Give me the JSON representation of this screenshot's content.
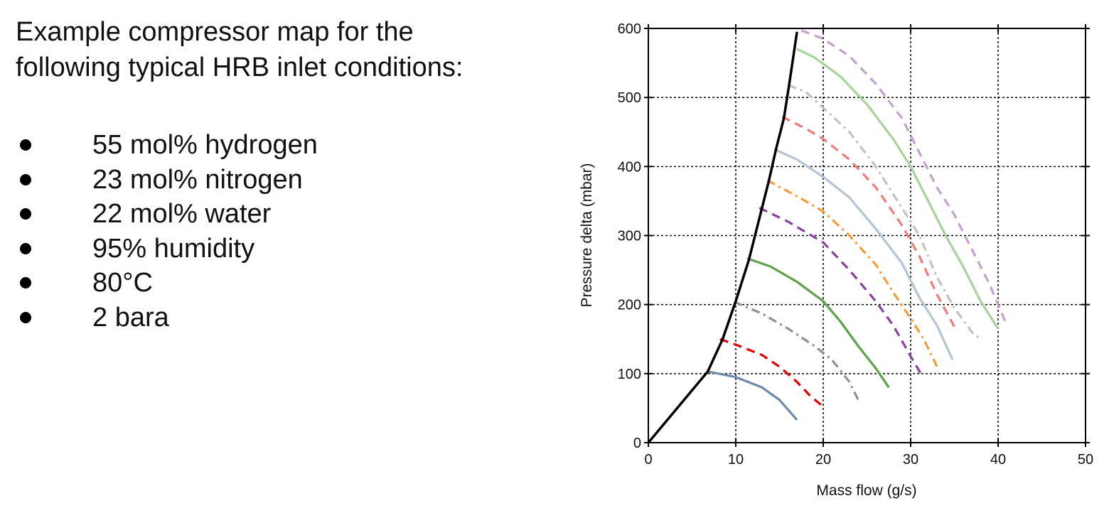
{
  "slide": {
    "title_lines": [
      "Example compressor map for the",
      "following typical HRB inlet conditions:"
    ],
    "bullets": [
      "55 mol% hydrogen",
      "23 mol% nitrogen",
      "22 mol% water",
      "95% humidity",
      "80°C",
      "2 bara"
    ]
  },
  "chart_data": {
    "type": "line",
    "title": "",
    "xlabel": "Mass flow (g/s)",
    "ylabel": "Pressure delta (mbar)",
    "xlim": [
      0,
      50
    ],
    "ylim": [
      0,
      600
    ],
    "xticks": [
      0,
      10,
      20,
      30,
      40,
      50
    ],
    "yticks": [
      0,
      100,
      200,
      300,
      400,
      500,
      600
    ],
    "grid": true,
    "surge_line": {
      "color": "#000000",
      "style": "solid",
      "points": [
        [
          0,
          0
        ],
        [
          6.8,
          103
        ],
        [
          8.5,
          150
        ],
        [
          10,
          205
        ],
        [
          11.5,
          265
        ],
        [
          13,
          340
        ],
        [
          13.8,
          380
        ],
        [
          14.6,
          425
        ],
        [
          15.5,
          470
        ],
        [
          16.1,
          518
        ],
        [
          17,
          595
        ]
      ]
    },
    "series": [
      {
        "color": "#6f8aa8",
        "style": "solid",
        "points": [
          [
            6.8,
            103
          ],
          [
            10,
            95
          ],
          [
            13,
            80
          ],
          [
            15,
            62
          ],
          [
            17,
            33
          ]
        ]
      },
      {
        "color": "#e00000",
        "style": "dashed",
        "points": [
          [
            8.2,
            150
          ],
          [
            10,
            142
          ],
          [
            13,
            127
          ],
          [
            15,
            110
          ],
          [
            17,
            88
          ],
          [
            18.5,
            68
          ],
          [
            20.2,
            50
          ]
        ]
      },
      {
        "color": "#9a8f88",
        "style": "dashdot",
        "points": [
          [
            9.8,
            204
          ],
          [
            13,
            187
          ],
          [
            16,
            165
          ],
          [
            19,
            140
          ],
          [
            21,
            120
          ],
          [
            23,
            88
          ],
          [
            24,
            62
          ]
        ]
      },
      {
        "color": "#5fa24a",
        "style": "solid",
        "points": [
          [
            11.3,
            267
          ],
          [
            14,
            255
          ],
          [
            17,
            233
          ],
          [
            20,
            205
          ],
          [
            22,
            175
          ],
          [
            24,
            140
          ],
          [
            26,
            108
          ],
          [
            27.5,
            80
          ]
        ]
      },
      {
        "color": "#8b3fa0",
        "style": "dashed",
        "points": [
          [
            12.7,
            340
          ],
          [
            16,
            320
          ],
          [
            20,
            290
          ],
          [
            23,
            250
          ],
          [
            26,
            205
          ],
          [
            28,
            170
          ],
          [
            30,
            125
          ],
          [
            31.4,
            95
          ]
        ]
      },
      {
        "color": "#f59b3a",
        "style": "dashdot",
        "points": [
          [
            13.6,
            380
          ],
          [
            17,
            357
          ],
          [
            20,
            335
          ],
          [
            23,
            300
          ],
          [
            26,
            258
          ],
          [
            28,
            218
          ],
          [
            30,
            180
          ],
          [
            31.5,
            150
          ],
          [
            33.2,
            105
          ]
        ]
      },
      {
        "color": "#b5c4d4",
        "style": "solid",
        "points": [
          [
            14.4,
            425
          ],
          [
            17,
            410
          ],
          [
            20,
            385
          ],
          [
            23,
            355
          ],
          [
            26,
            310
          ],
          [
            29,
            260
          ],
          [
            31,
            210
          ],
          [
            33,
            170
          ],
          [
            34.8,
            120
          ]
        ]
      },
      {
        "color": "#ef7b78",
        "style": "dashed",
        "points": [
          [
            15.3,
            472
          ],
          [
            18,
            455
          ],
          [
            20,
            440
          ],
          [
            23,
            410
          ],
          [
            26,
            370
          ],
          [
            29,
            315
          ],
          [
            31,
            270
          ],
          [
            33,
            215
          ],
          [
            35.2,
            163
          ]
        ]
      },
      {
        "color": "#c8c0bb",
        "style": "dashdot",
        "points": [
          [
            16,
            518
          ],
          [
            18,
            508
          ],
          [
            20,
            485
          ],
          [
            23,
            450
          ],
          [
            26,
            400
          ],
          [
            29,
            340
          ],
          [
            31,
            300
          ],
          [
            33,
            240
          ],
          [
            35,
            195
          ],
          [
            37,
            160
          ],
          [
            37.8,
            152
          ]
        ]
      },
      {
        "color": "#a8d39a",
        "style": "solid",
        "points": [
          [
            17,
            570
          ],
          [
            19,
            558
          ],
          [
            22,
            530
          ],
          [
            25,
            490
          ],
          [
            28,
            440
          ],
          [
            30,
            400
          ],
          [
            32,
            350
          ],
          [
            34,
            300
          ],
          [
            36,
            255
          ],
          [
            38,
            205
          ],
          [
            40,
            165
          ]
        ]
      },
      {
        "color": "#c6a0d0",
        "style": "dashed",
        "points": [
          [
            17.5,
            597
          ],
          [
            20,
            585
          ],
          [
            23,
            560
          ],
          [
            26,
            520
          ],
          [
            29,
            470
          ],
          [
            31,
            420
          ],
          [
            33,
            370
          ],
          [
            35,
            330
          ],
          [
            37,
            280
          ],
          [
            39,
            230
          ],
          [
            41,
            170
          ]
        ]
      }
    ]
  }
}
